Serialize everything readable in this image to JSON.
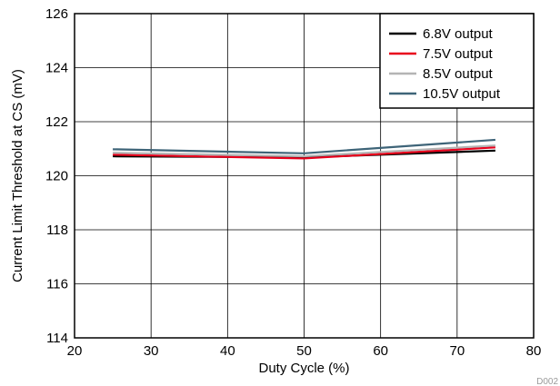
{
  "chart_data": {
    "type": "line",
    "title": "",
    "xlabel": "Duty Cycle (%)",
    "ylabel": "Current Limit Threshold at CS (mV)",
    "xlim": [
      20,
      80
    ],
    "ylim": [
      114,
      126
    ],
    "x_ticks": [
      20,
      30,
      40,
      50,
      60,
      70,
      80
    ],
    "y_ticks": [
      114,
      116,
      118,
      120,
      122,
      124,
      126
    ],
    "grid": true,
    "legend_position": "top-right",
    "x": [
      25,
      50,
      75
    ],
    "series": [
      {
        "name": "6.8V output",
        "color": "#000000",
        "values": [
          120.72,
          120.68,
          120.93
        ]
      },
      {
        "name": "7.5V output",
        "color": "#e8001c",
        "values": [
          120.78,
          120.64,
          121.05
        ]
      },
      {
        "name": "8.5V output",
        "color": "#b4b4b4",
        "values": [
          120.85,
          120.72,
          121.12
        ]
      },
      {
        "name": "10.5V output",
        "color": "#3e6478",
        "values": [
          120.98,
          120.83,
          121.33
        ]
      }
    ],
    "watermark": "D002"
  }
}
